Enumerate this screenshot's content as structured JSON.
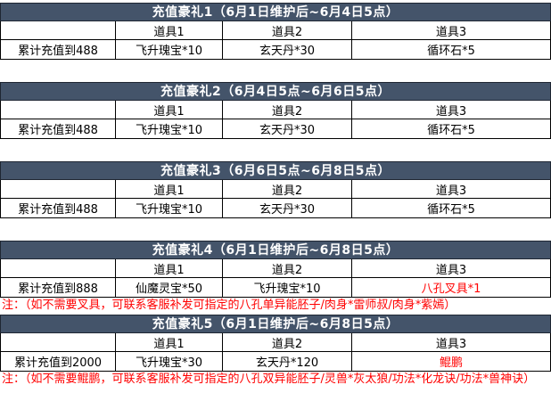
{
  "colors": {
    "header_bg": "#44546A",
    "header_text": "#FFFFFF",
    "cell_border": "#000000",
    "highlight_red": "#FF0000",
    "page_bg": "#FFFFFF"
  },
  "tables": [
    {
      "title": "充值豪礼1（6月1日维护后~6月4日5点）",
      "columns": [
        "道具1",
        "道具2",
        "道具3"
      ],
      "row_label": "累计充值到488",
      "items": [
        "飞升瑰宝*10",
        "玄天丹*30",
        "循环石*5"
      ]
    },
    {
      "title": "充值豪礼2（6月4日5点~6月6日5点）",
      "columns": [
        "道具1",
        "道具2",
        "道具3"
      ],
      "row_label": "累计充值到488",
      "items": [
        "飞升瑰宝*10",
        "玄天丹*30",
        "循环石*5"
      ]
    },
    {
      "title": "充值豪礼3（6月6日5点~6月8日5点）",
      "columns": [
        "道具1",
        "道具2",
        "道具3"
      ],
      "row_label": "累计充值到488",
      "items": [
        "飞升瑰宝*10",
        "玄天丹*30",
        "循环石*5"
      ]
    },
    {
      "title": "充值豪礼4（6月1日维护后~6月8日5点）",
      "columns": [
        "道具1",
        "道具2",
        "道具3"
      ],
      "row_label": "累计充值到888",
      "items": [
        "仙魔灵宝*50",
        "飞升瑰宝*10",
        "八孔叉具*1"
      ],
      "note": "注：（如不需要叉具，可联系客服补发可指定的八孔单异能胚子/肉身*雷师叔/肉身*紫嫣）"
    },
    {
      "title": "充值豪礼5（6月1日维护后~6月8日5点）",
      "columns": [
        "道具1",
        "道具2",
        "道具3"
      ],
      "row_label": "累计充值到2000",
      "items": [
        "飞升瑰宝*30",
        "玄天丹*120",
        "鲲鹏"
      ],
      "note": "注：（如不需要鲲鹏，可联系客服补发可指定的八孔双异能胚子/灵兽*灰太狼/功法*化龙诀/功法*兽神诀）"
    }
  ]
}
